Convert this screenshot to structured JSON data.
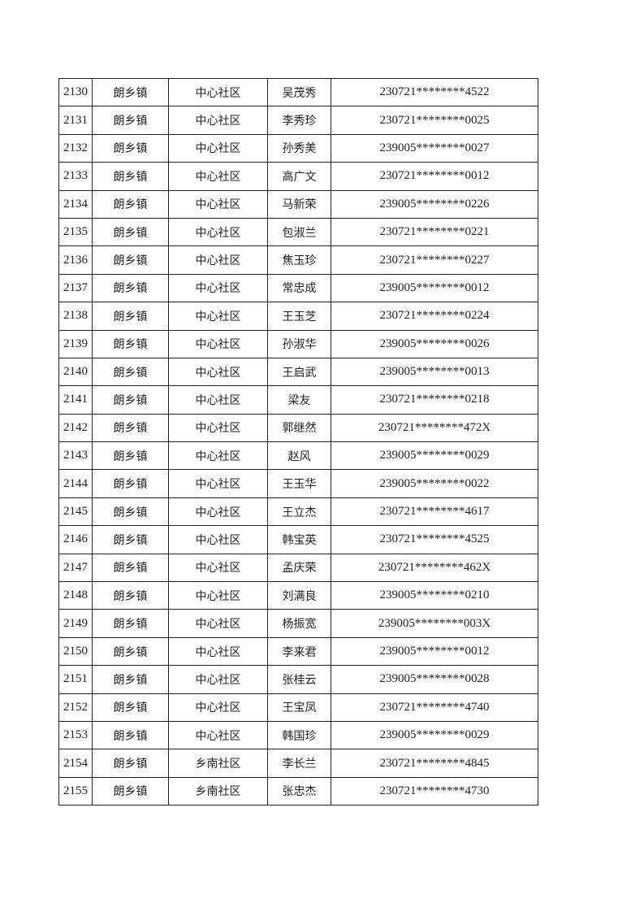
{
  "rows": [
    {
      "no": "2130",
      "town": "朗乡镇",
      "community": "中心社区",
      "name": "吴茂秀",
      "id": "230721********4522"
    },
    {
      "no": "2131",
      "town": "朗乡镇",
      "community": "中心社区",
      "name": "李秀珍",
      "id": "230721********0025"
    },
    {
      "no": "2132",
      "town": "朗乡镇",
      "community": "中心社区",
      "name": "孙秀美",
      "id": "239005********0027"
    },
    {
      "no": "2133",
      "town": "朗乡镇",
      "community": "中心社区",
      "name": "高广文",
      "id": "230721********0012"
    },
    {
      "no": "2134",
      "town": "朗乡镇",
      "community": "中心社区",
      "name": "马新荣",
      "id": "239005********0226"
    },
    {
      "no": "2135",
      "town": "朗乡镇",
      "community": "中心社区",
      "name": "包淑兰",
      "id": "230721********0221"
    },
    {
      "no": "2136",
      "town": "朗乡镇",
      "community": "中心社区",
      "name": "焦玉珍",
      "id": "230721********0227"
    },
    {
      "no": "2137",
      "town": "朗乡镇",
      "community": "中心社区",
      "name": "常忠成",
      "id": "239005********0012"
    },
    {
      "no": "2138",
      "town": "朗乡镇",
      "community": "中心社区",
      "name": "王玉芝",
      "id": "230721********0224"
    },
    {
      "no": "2139",
      "town": "朗乡镇",
      "community": "中心社区",
      "name": "孙淑华",
      "id": "239005********0026"
    },
    {
      "no": "2140",
      "town": "朗乡镇",
      "community": "中心社区",
      "name": "王启武",
      "id": "239005********0013"
    },
    {
      "no": "2141",
      "town": "朗乡镇",
      "community": "中心社区",
      "name": "梁友",
      "id": "230721********0218"
    },
    {
      "no": "2142",
      "town": "朗乡镇",
      "community": "中心社区",
      "name": "郭继然",
      "id": "230721********472X"
    },
    {
      "no": "2143",
      "town": "朗乡镇",
      "community": "中心社区",
      "name": "赵风",
      "id": "239005********0029"
    },
    {
      "no": "2144",
      "town": "朗乡镇",
      "community": "中心社区",
      "name": "王玉华",
      "id": "239005********0022"
    },
    {
      "no": "2145",
      "town": "朗乡镇",
      "community": "中心社区",
      "name": "王立杰",
      "id": "230721********4617"
    },
    {
      "no": "2146",
      "town": "朗乡镇",
      "community": "中心社区",
      "name": "韩宝英",
      "id": "230721********4525"
    },
    {
      "no": "2147",
      "town": "朗乡镇",
      "community": "中心社区",
      "name": "孟庆荣",
      "id": "230721********462X"
    },
    {
      "no": "2148",
      "town": "朗乡镇",
      "community": "中心社区",
      "name": "刘满良",
      "id": "239005********0210"
    },
    {
      "no": "2149",
      "town": "朗乡镇",
      "community": "中心社区",
      "name": "杨振宽",
      "id": "239005********003X"
    },
    {
      "no": "2150",
      "town": "朗乡镇",
      "community": "中心社区",
      "name": "李来君",
      "id": "239005********0012"
    },
    {
      "no": "2151",
      "town": "朗乡镇",
      "community": "中心社区",
      "name": "张桂云",
      "id": "239005********0028"
    },
    {
      "no": "2152",
      "town": "朗乡镇",
      "community": "中心社区",
      "name": "王宝凤",
      "id": "230721********4740"
    },
    {
      "no": "2153",
      "town": "朗乡镇",
      "community": "中心社区",
      "name": "韩国珍",
      "id": "239005********0029"
    },
    {
      "no": "2154",
      "town": "朗乡镇",
      "community": "乡南社区",
      "name": "李长兰",
      "id": "230721********4845"
    },
    {
      "no": "2155",
      "town": "朗乡镇",
      "community": "乡南社区",
      "name": "张忠杰",
      "id": "230721********4730"
    }
  ]
}
